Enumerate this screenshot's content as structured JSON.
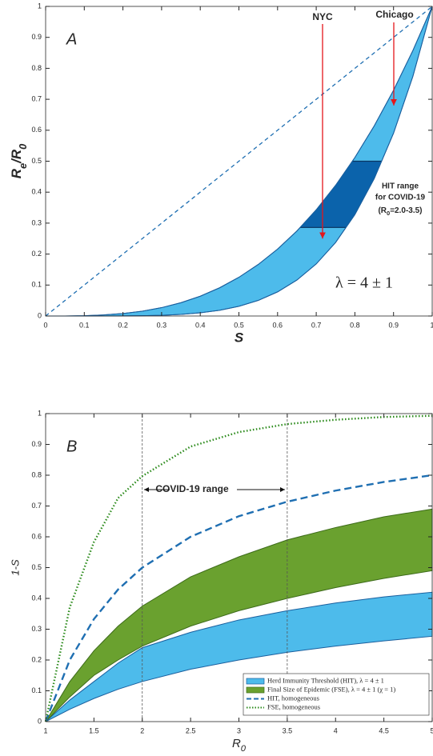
{
  "chart_data": [
    {
      "type": "band",
      "label": "A",
      "xlabel": "S",
      "ylabel": [
        "R",
        "e",
        "/R",
        "0"
      ],
      "xlim": [
        0,
        1
      ],
      "ylim": [
        0,
        1
      ],
      "xticks": [
        0,
        0.1,
        0.2,
        0.3,
        0.4,
        0.5,
        0.6,
        0.7,
        0.8,
        0.9,
        1
      ],
      "yticks": [
        0,
        0.1,
        0.2,
        0.3,
        0.4,
        0.5,
        0.6,
        0.7,
        0.8,
        0.9,
        1
      ],
      "bands": [
        {
          "color": "#4dbbeb",
          "edge": "#1a5f9e",
          "x": [
            0,
            0.05,
            0.1,
            0.15,
            0.2,
            0.25,
            0.3,
            0.35,
            0.4,
            0.45,
            0.5,
            0.55,
            0.6,
            0.65,
            0.7,
            0.75,
            0.8,
            0.85,
            0.9,
            0.95,
            1
          ],
          "lower": [
            0,
            0,
            0,
            0.0001,
            0.0003,
            0.001,
            0.0024,
            0.0053,
            0.0102,
            0.0185,
            0.0313,
            0.0503,
            0.0778,
            0.116,
            0.1681,
            0.2373,
            0.3277,
            0.4437,
            0.5905,
            0.7738,
            1
          ],
          "upper": [
            0,
            0.0001,
            0.001,
            0.0034,
            0.008,
            0.0156,
            0.027,
            0.0429,
            0.064,
            0.0911,
            0.125,
            0.1664,
            0.216,
            0.2746,
            0.343,
            0.4219,
            0.512,
            0.6141,
            0.729,
            0.8574,
            1
          ]
        }
      ],
      "hit_band": [
        0.286,
        0.5
      ],
      "hit_color": "#0b63ab",
      "lines": [
        {
          "color": "#1f6fb2",
          "style": "dashed",
          "x": [
            0,
            1
          ],
          "values": [
            0,
            1
          ]
        }
      ],
      "annotations": {
        "nyc": "NYC",
        "chicago": "Chicago",
        "hit_note": [
          "HIT range",
          "for COVID-19"
        ],
        "hit_r0": [
          "(R",
          "0",
          "=2.0-3.5)"
        ],
        "lambda": "λ = 4 ± 1"
      }
    },
    {
      "type": "band",
      "label": "B",
      "xlabel": [
        "R",
        "0"
      ],
      "ylabel": "1-S",
      "xlim": [
        1,
        5
      ],
      "ylim": [
        0,
        1
      ],
      "xticks": [
        1,
        1.5,
        2,
        2.5,
        3,
        3.5,
        4,
        4.5,
        5
      ],
      "yticks": [
        0,
        0.1,
        0.2,
        0.3,
        0.4,
        0.5,
        0.6,
        0.7,
        0.8,
        0.9,
        1
      ],
      "bands": [
        {
          "name": "Herd Immunity Threshold (HIT), λ = 4 ± 1",
          "color": "#4dbbeb",
          "edge": "#1a5f9e",
          "x": [
            1,
            1.25,
            1.5,
            1.75,
            2,
            2.5,
            3,
            3.5,
            4,
            4.5,
            5
          ],
          "lower": [
            0,
            0.04,
            0.075,
            0.105,
            0.13,
            0.17,
            0.2,
            0.225,
            0.245,
            0.262,
            0.277
          ],
          "upper": [
            0,
            0.07,
            0.13,
            0.19,
            0.24,
            0.29,
            0.33,
            0.36,
            0.385,
            0.405,
            0.42
          ]
        },
        {
          "name": "Final Size of Epidemic (FSE), λ = 4 ± 1 (χ = 1)",
          "color": "#6aa12f",
          "edge": "#3d6b1a",
          "x": [
            1,
            1.25,
            1.5,
            1.75,
            2,
            2.5,
            3,
            3.5,
            4,
            4.5,
            5
          ],
          "lower": [
            0,
            0.08,
            0.15,
            0.2,
            0.245,
            0.31,
            0.36,
            0.4,
            0.435,
            0.465,
            0.49
          ],
          "upper": [
            0,
            0.13,
            0.23,
            0.31,
            0.375,
            0.47,
            0.535,
            0.59,
            0.63,
            0.665,
            0.69
          ]
        }
      ],
      "lines": [
        {
          "name": "HIT, homogeneous",
          "color": "#1f6fb2",
          "style": "dashed",
          "x": [
            1,
            1.25,
            1.5,
            1.75,
            2,
            2.5,
            3,
            3.5,
            4,
            4.5,
            5
          ],
          "values": [
            0,
            0.2,
            0.333,
            0.429,
            0.5,
            0.6,
            0.667,
            0.714,
            0.75,
            0.778,
            0.8
          ]
        },
        {
          "name": "FSE, homogeneous",
          "color": "#2a8a1a",
          "style": "dotted",
          "x": [
            1,
            1.25,
            1.5,
            1.75,
            2,
            2.5,
            3,
            3.5,
            4,
            4.5,
            5
          ],
          "values": [
            0,
            0.371,
            0.583,
            0.726,
            0.797,
            0.893,
            0.94,
            0.966,
            0.98,
            0.989,
            0.993
          ]
        }
      ],
      "vlines": [
        2,
        3.5
      ],
      "legend": "lower right",
      "annotations": {
        "range": "COVID-19 range"
      }
    }
  ]
}
